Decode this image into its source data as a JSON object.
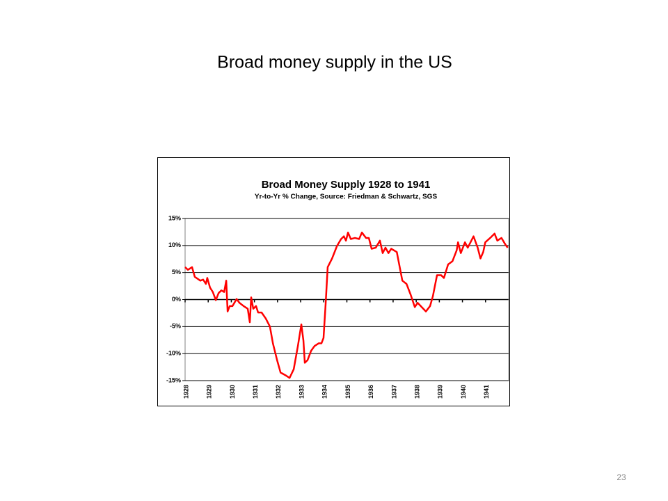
{
  "slide": {
    "title": "Broad money supply in the US",
    "page_number": "23"
  },
  "chart_data": {
    "type": "line",
    "title": "Broad Money Supply 1928 to 1941",
    "subtitle": "Yr-to-Yr % Change, Source: Friedman & Schwartz, SGS",
    "color": "#ff0000",
    "x": [
      1928.0,
      1928.12,
      1928.3,
      1928.42,
      1928.66,
      1928.78,
      1928.9,
      1928.96,
      1929.08,
      1929.2,
      1929.33,
      1929.45,
      1929.57,
      1929.69,
      1929.78,
      1929.84,
      1929.93,
      1930.05,
      1930.23,
      1930.35,
      1930.53,
      1930.71,
      1930.8,
      1930.86,
      1930.95,
      1931.07,
      1931.16,
      1931.31,
      1931.49,
      1931.67,
      1931.8,
      1931.98,
      1932.13,
      1932.34,
      1932.52,
      1932.7,
      1932.88,
      1933.03,
      1933.12,
      1933.18,
      1933.3,
      1933.45,
      1933.6,
      1933.78,
      1933.9,
      1933.99,
      1934.08,
      1934.17,
      1934.36,
      1934.57,
      1934.75,
      1934.87,
      1934.96,
      1935.05,
      1935.17,
      1935.35,
      1935.53,
      1935.65,
      1935.83,
      1935.95,
      1936.07,
      1936.25,
      1936.43,
      1936.55,
      1936.67,
      1936.8,
      1936.92,
      1937.16,
      1937.4,
      1937.58,
      1937.76,
      1937.94,
      1938.06,
      1938.24,
      1938.42,
      1938.6,
      1938.72,
      1938.9,
      1939.08,
      1939.2,
      1939.38,
      1939.57,
      1939.75,
      1939.81,
      1939.93,
      1940.11,
      1940.23,
      1940.35,
      1940.48,
      1940.66,
      1940.78,
      1940.9,
      1940.99,
      1941.2,
      1941.39,
      1941.51,
      1941.69,
      1941.87,
      1941.96
    ],
    "values": [
      6.0,
      5.5,
      6.0,
      4.2,
      3.5,
      3.7,
      2.9,
      4.0,
      2.2,
      1.4,
      -0.1,
      1.2,
      1.7,
      1.4,
      3.5,
      -2.2,
      -1.2,
      -1.2,
      0.1,
      -0.6,
      -1.2,
      -1.7,
      -4.2,
      0.4,
      -1.7,
      -1.2,
      -2.4,
      -2.4,
      -3.5,
      -5.0,
      -8.1,
      -11.2,
      -13.5,
      -14.0,
      -14.5,
      -12.9,
      -8.6,
      -4.6,
      -7.6,
      -11.7,
      -11.2,
      -9.5,
      -8.6,
      -8.1,
      -8.1,
      -7.1,
      -0.9,
      6.0,
      7.6,
      9.9,
      11.2,
      11.7,
      10.9,
      12.4,
      11.2,
      11.4,
      11.2,
      12.4,
      11.4,
      11.4,
      9.4,
      9.6,
      10.9,
      8.6,
      9.6,
      8.6,
      9.4,
      8.8,
      3.5,
      2.9,
      0.9,
      -1.4,
      -0.6,
      -1.4,
      -2.2,
      -1.2,
      0.6,
      4.5,
      4.5,
      4.0,
      6.5,
      7.1,
      9.1,
      10.6,
      8.6,
      10.6,
      9.6,
      10.6,
      11.7,
      9.6,
      7.6,
      8.8,
      10.6,
      11.4,
      12.2,
      10.9,
      11.4,
      10.1,
      9.6
    ],
    "xlim": [
      1928,
      1942
    ],
    "xticks": [
      1928,
      1929,
      1930,
      1931,
      1932,
      1933,
      1934,
      1935,
      1936,
      1937,
      1938,
      1939,
      1940,
      1941
    ],
    "ylim": [
      -15,
      15
    ],
    "yticks": [
      {
        "value": -15,
        "label": "-15%"
      },
      {
        "value": -10,
        "label": "-10%"
      },
      {
        "value": -5,
        "label": "-5%"
      },
      {
        "value": 0,
        "label": "0%"
      },
      {
        "value": 5,
        "label": "5%"
      },
      {
        "value": 10,
        "label": "10%"
      },
      {
        "value": 15,
        "label": "15%"
      }
    ],
    "grid": true
  }
}
